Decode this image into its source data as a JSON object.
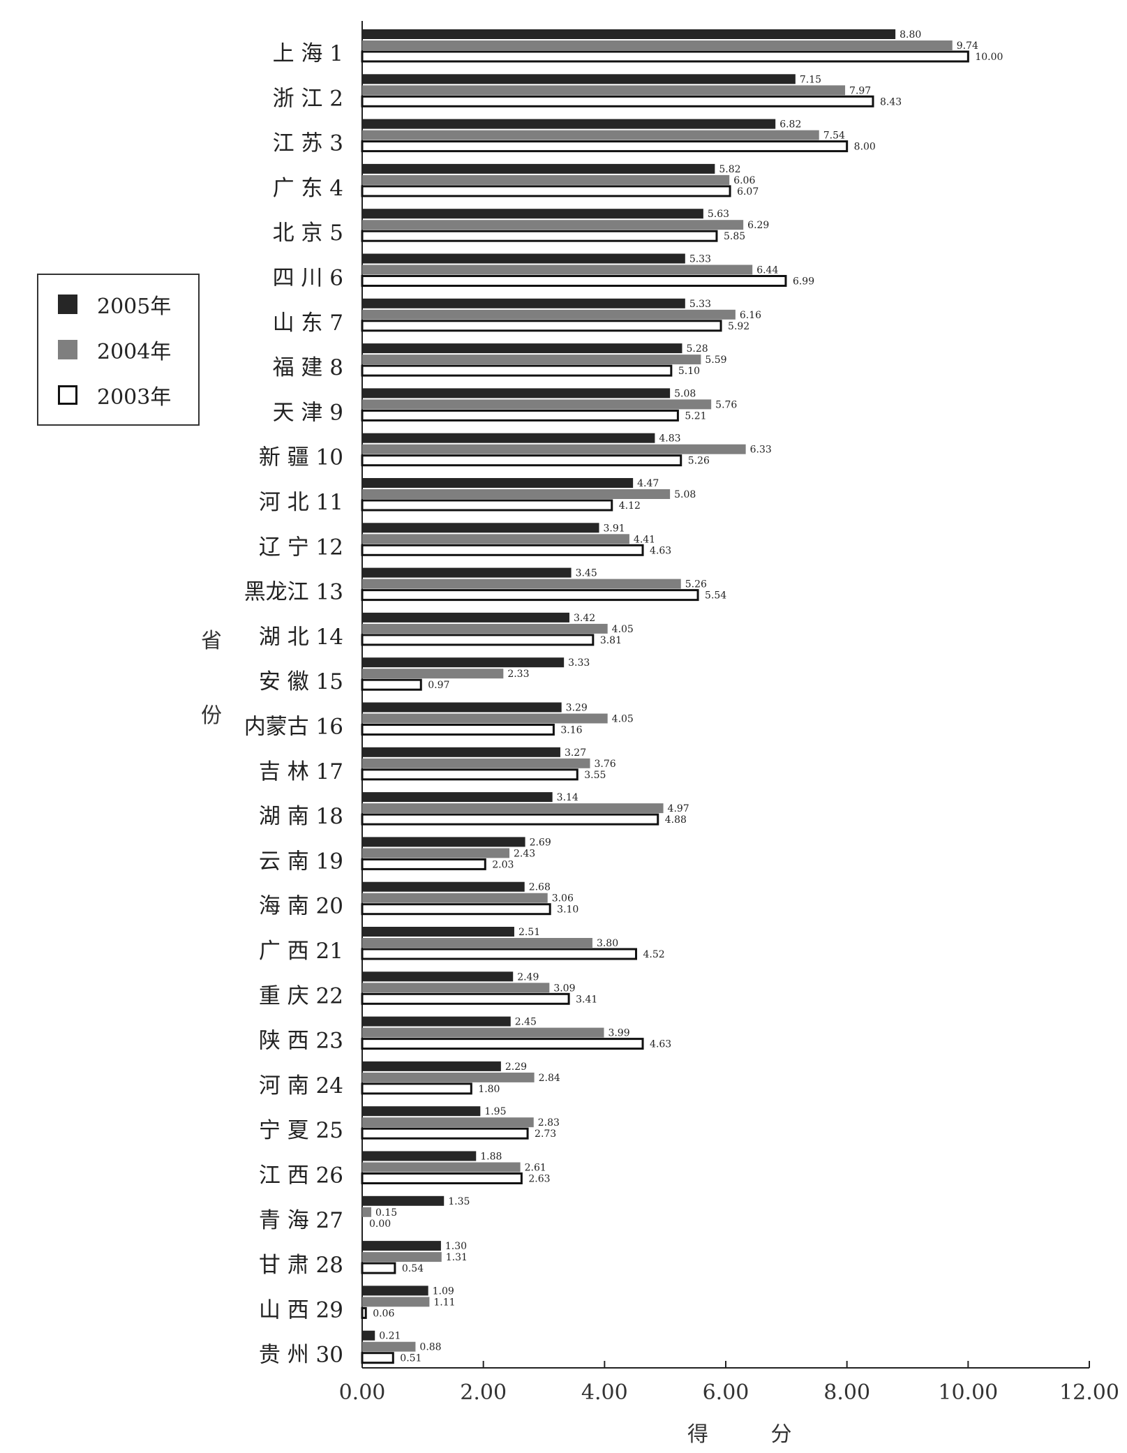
{
  "chart_data": {
    "type": "bar",
    "orientation": "horizontal",
    "title": "",
    "xlabel": "得 分",
    "ylabel": [
      "省",
      "份"
    ],
    "xlim": [
      0,
      12
    ],
    "x_ticks": [
      "0.00",
      "2.00",
      "4.00",
      "6.00",
      "8.00",
      "10.00",
      "12.00"
    ],
    "legend_position": "left",
    "categories": [
      "上 海 1",
      "浙 江 2",
      "江 苏 3",
      "广 东 4",
      "北 京 5",
      "四 川 6",
      "山 东 7",
      "福 建 8",
      "天 津 9",
      "新 疆 10",
      "河 北 11",
      "辽 宁 12",
      "黑龙江 13",
      "湖 北 14",
      "安 徽 15",
      "内蒙古 16",
      "吉 林 17",
      "湖 南 18",
      "云 南 19",
      "海 南 20",
      "广 西 21",
      "重 庆 22",
      "陕 西 23",
      "河 南 24",
      "宁 夏 25",
      "江 西 26",
      "青 海 27",
      "甘 肃 28",
      "山 西 29",
      "贵 州 30"
    ],
    "series": [
      {
        "name": "2005年",
        "color": "#262626",
        "values": [
          8.8,
          7.15,
          6.82,
          5.82,
          5.63,
          5.33,
          5.33,
          5.28,
          5.08,
          4.83,
          4.47,
          3.91,
          3.45,
          3.42,
          3.33,
          3.29,
          3.27,
          3.14,
          2.69,
          2.68,
          2.51,
          2.49,
          2.45,
          2.29,
          1.95,
          1.88,
          1.35,
          1.3,
          1.09,
          0.21
        ],
        "labels": [
          "8.80",
          "7.15",
          "6.82",
          "5.82",
          "5.63",
          "5.33",
          "5.33",
          "5.28",
          "5.08",
          "4.83",
          "4.47",
          "3.91",
          "3.45",
          "3.42",
          "3.33",
          "3.29",
          "3.27",
          "3.14",
          "2.69",
          "2.68",
          "2.51",
          "2.49",
          "2.45",
          "2.29",
          "1.95",
          "1.88",
          "1.35",
          "1.30",
          "1.09",
          "0.21"
        ]
      },
      {
        "name": "2004年",
        "color": "#7f7f7f",
        "values": [
          9.74,
          7.97,
          7.54,
          6.06,
          6.29,
          6.44,
          6.16,
          5.59,
          5.76,
          6.33,
          5.08,
          4.41,
          5.26,
          4.05,
          2.33,
          4.05,
          3.76,
          4.97,
          2.43,
          3.06,
          3.8,
          3.09,
          3.99,
          2.84,
          2.83,
          2.61,
          0.15,
          1.31,
          1.11,
          0.88
        ],
        "labels": [
          "9.74",
          "7.97",
          "7.54",
          "6.06",
          "6.29",
          "6.44",
          "6.16",
          "5.59",
          "5.76",
          "6.33",
          "5.08",
          "4.41",
          "5.26",
          "4.05",
          "2.33",
          "4.05",
          "3.76",
          "4.97",
          "2.43",
          "3.06",
          "3.80",
          "3.09",
          "3.99",
          "2.84",
          "2.83",
          "2.61",
          "0.15",
          "1.31",
          "1.11",
          "0.88"
        ]
      },
      {
        "name": "2003年",
        "color": "#ffffff",
        "values": [
          10.0,
          8.43,
          8.0,
          6.07,
          5.85,
          6.99,
          5.92,
          5.1,
          5.21,
          5.26,
          4.12,
          4.63,
          5.54,
          3.81,
          0.97,
          3.16,
          3.55,
          4.88,
          2.03,
          3.1,
          4.52,
          3.41,
          4.63,
          1.8,
          2.73,
          2.63,
          0.0,
          0.54,
          0.06,
          0.51
        ],
        "labels": [
          "10.00",
          "8.43",
          "8.00",
          "6.07",
          "5.85",
          "6.99",
          "5.92",
          "5.10",
          "5.21",
          "5.26",
          "4.12",
          "4.63",
          "5.54",
          "3.81",
          "0.97",
          "3.16",
          "3.55",
          "4.88",
          "2.03",
          "3.10",
          "4.52",
          "3.41",
          "4.63",
          "1.80",
          "2.73",
          "2.63",
          "0.00",
          "0.54",
          "0.06",
          "0.51"
        ]
      }
    ]
  }
}
